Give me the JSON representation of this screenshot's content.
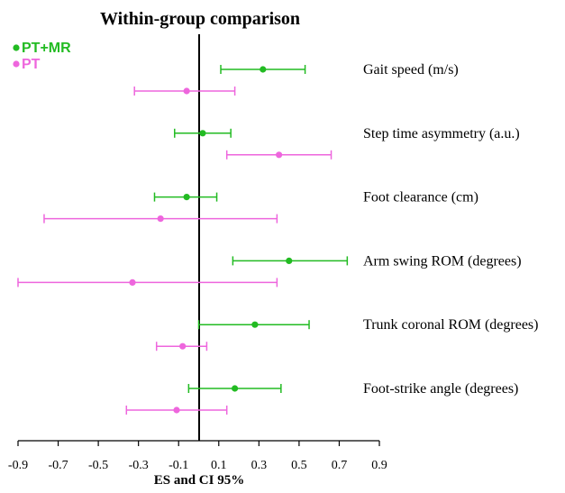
{
  "chart_data": {
    "type": "forest",
    "title": "Within-group comparison",
    "xlabel": "ES and CI 95%",
    "xlim": [
      -0.9,
      0.9
    ],
    "xticks": [
      -0.9,
      -0.7,
      -0.5,
      -0.3,
      -0.1,
      0.1,
      0.3,
      0.5,
      0.7,
      0.9
    ],
    "reference_line": 0,
    "legend_position": "top-left",
    "categories": [
      "Gait speed (m/s)",
      "Step time asymmetry (a.u.)",
      "Foot clearance (cm)",
      "Arm swing ROM (degrees)",
      "Trunk coronal ROM (degrees)",
      "Foot-strike angle (degrees)"
    ],
    "series": [
      {
        "name": "PT+MR",
        "color": "#22bb22",
        "points": [
          {
            "es": 0.32,
            "lo": 0.11,
            "hi": 0.53
          },
          {
            "es": 0.02,
            "lo": -0.12,
            "hi": 0.16
          },
          {
            "es": -0.06,
            "lo": -0.22,
            "hi": 0.09
          },
          {
            "es": 0.45,
            "lo": 0.17,
            "hi": 0.74
          },
          {
            "es": 0.28,
            "lo": 0.0,
            "hi": 0.55
          },
          {
            "es": 0.18,
            "lo": -0.05,
            "hi": 0.41
          }
        ]
      },
      {
        "name": "PT",
        "color": "#ee66dd",
        "points": [
          {
            "es": -0.06,
            "lo": -0.32,
            "hi": 0.18
          },
          {
            "es": 0.4,
            "lo": 0.14,
            "hi": 0.66
          },
          {
            "es": -0.19,
            "lo": -0.77,
            "hi": 0.39
          },
          {
            "es": -0.33,
            "lo": -0.9,
            "hi": 0.39
          },
          {
            "es": -0.08,
            "lo": -0.21,
            "hi": 0.04
          },
          {
            "es": -0.11,
            "lo": -0.36,
            "hi": 0.14
          }
        ]
      }
    ]
  }
}
